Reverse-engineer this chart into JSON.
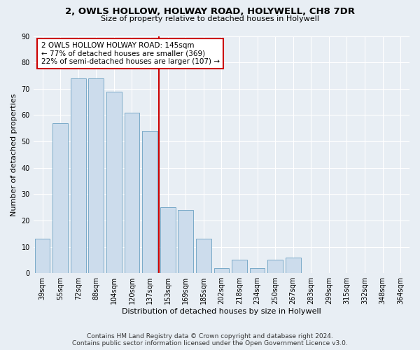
{
  "title1": "2, OWLS HOLLOW, HOLWAY ROAD, HOLYWELL, CH8 7DR",
  "title2": "Size of property relative to detached houses in Holywell",
  "xlabel": "Distribution of detached houses by size in Holywell",
  "ylabel": "Number of detached properties",
  "categories": [
    "39sqm",
    "55sqm",
    "72sqm",
    "88sqm",
    "104sqm",
    "120sqm",
    "137sqm",
    "153sqm",
    "169sqm",
    "185sqm",
    "202sqm",
    "218sqm",
    "234sqm",
    "250sqm",
    "267sqm",
    "283sqm",
    "299sqm",
    "315sqm",
    "332sqm",
    "348sqm",
    "364sqm"
  ],
  "values": [
    13,
    57,
    74,
    74,
    69,
    61,
    54,
    25,
    24,
    13,
    2,
    5,
    2,
    5,
    6,
    0,
    0,
    0,
    0,
    0,
    0
  ],
  "bar_color": "#ccdcec",
  "bar_edge_color": "#7aaac8",
  "vline_color": "#cc0000",
  "annotation_text": "2 OWLS HOLLOW HOLWAY ROAD: 145sqm\n← 77% of detached houses are smaller (369)\n22% of semi-detached houses are larger (107) →",
  "annotation_box_color": "#ffffff",
  "annotation_box_edge_color": "#cc0000",
  "ylim": [
    0,
    90
  ],
  "yticks": [
    0,
    10,
    20,
    30,
    40,
    50,
    60,
    70,
    80,
    90
  ],
  "footer": "Contains HM Land Registry data © Crown copyright and database right 2024.\nContains public sector information licensed under the Open Government Licence v3.0.",
  "background_color": "#e8eef4",
  "grid_color": "#ffffff",
  "title1_fontsize": 9.5,
  "title2_fontsize": 8.0,
  "ylabel_fontsize": 8.0,
  "xlabel_fontsize": 8.0,
  "tick_fontsize": 7.0,
  "annotation_fontsize": 7.5,
  "footer_fontsize": 6.5
}
